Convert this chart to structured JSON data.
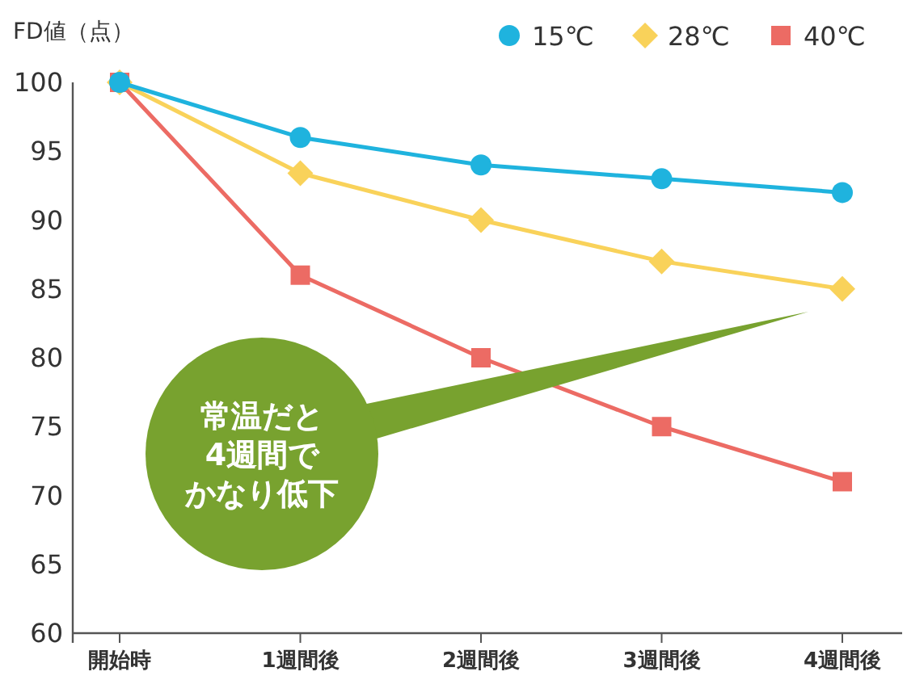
{
  "chart_data": {
    "type": "line",
    "ylabel": "FD値（点）",
    "categories": [
      "開始時",
      "1週間後",
      "2週間後",
      "3週間後",
      "4週間後"
    ],
    "ylim": [
      60,
      100
    ],
    "yticks": [
      60,
      65,
      70,
      75,
      80,
      85,
      90,
      95,
      100
    ],
    "grid": false,
    "legend": "top right",
    "line_style": "solid",
    "series": [
      {
        "name": "15℃",
        "color": "#1fb3de",
        "marker": "circle",
        "values": [
          100,
          96,
          94,
          93,
          92
        ]
      },
      {
        "name": "28℃",
        "color": "#f9d25a",
        "marker": "diamond",
        "values": [
          100,
          93.4,
          90,
          87,
          85
        ]
      },
      {
        "name": "40℃",
        "color": "#ec6b64",
        "marker": "square",
        "values": [
          100,
          86,
          80,
          75,
          71
        ]
      }
    ],
    "annotations": [
      "常温だと",
      "4週間で",
      "かなり低下"
    ]
  }
}
